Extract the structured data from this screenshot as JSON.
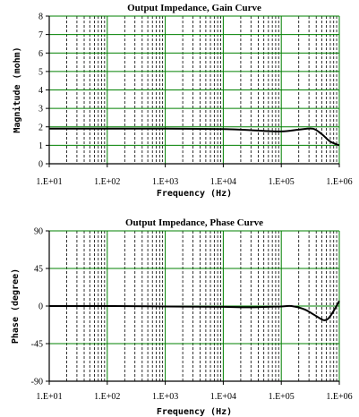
{
  "chart_data": [
    {
      "type": "line",
      "title": "Output Impedance, Gain Curve",
      "xlabel": "Frequency (Hz)",
      "ylabel": "Magnitude (mohm)",
      "xscale": "log",
      "xlim": [
        10,
        1000000
      ],
      "ylim": [
        0,
        8
      ],
      "yticks": [
        0,
        1,
        2,
        3,
        4,
        5,
        6,
        7,
        8
      ],
      "xtick_labels": [
        "1.E+01",
        "1.E+02",
        "1.E+03",
        "1.E+04",
        "1.E+05",
        "1.E+06"
      ],
      "grid": true,
      "colors": {
        "major_grid": "#008000",
        "minor_grid": "#000000",
        "line": "#000000"
      },
      "series": [
        {
          "x": [
            10,
            100,
            1000,
            10000,
            30000,
            100000,
            200000,
            350000,
            500000,
            700000,
            1000000
          ],
          "values": [
            1.9,
            1.9,
            1.9,
            1.88,
            1.82,
            1.75,
            1.85,
            1.9,
            1.6,
            1.2,
            1.0
          ]
        }
      ]
    },
    {
      "type": "line",
      "title": "Output Impedance, Phase Curve",
      "xlabel": "Frequency (Hz)",
      "ylabel": "Phase (degree)",
      "xscale": "log",
      "xlim": [
        10,
        1000000
      ],
      "ylim": [
        -90,
        90
      ],
      "yticks": [
        -90,
        -45,
        0,
        45,
        90
      ],
      "xtick_labels": [
        "1.E+01",
        "1.E+02",
        "1.E+03",
        "1.E+04",
        "1.E+05",
        "1.E+06"
      ],
      "grid": true,
      "colors": {
        "major_grid": "#008000",
        "minor_grid": "#000000",
        "line": "#000000"
      },
      "series": [
        {
          "x": [
            10,
            100,
            1000,
            10000,
            30000,
            100000,
            150000,
            250000,
            400000,
            550000,
            700000,
            1000000
          ],
          "values": [
            0,
            0,
            -0.5,
            -1,
            -1.5,
            -0.5,
            0,
            -4,
            -12,
            -17,
            -12,
            6
          ]
        }
      ]
    }
  ]
}
